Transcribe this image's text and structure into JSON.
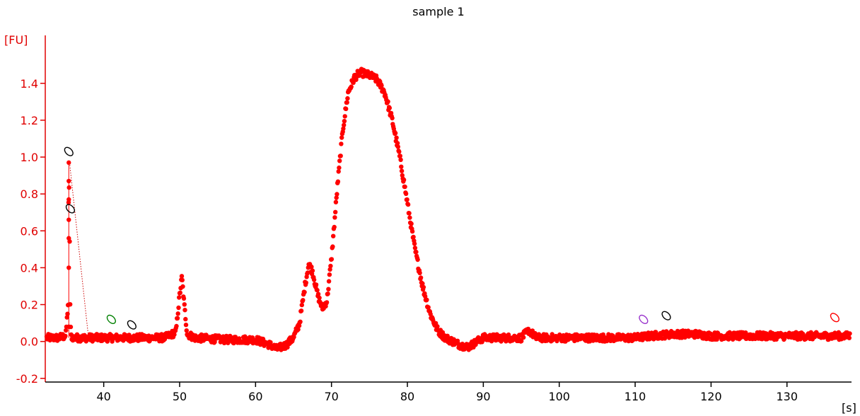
{
  "chart_data": {
    "type": "scatter",
    "title": "sample 1",
    "xlabel": "[s]",
    "ylabel": "[FU]",
    "xlim": [
      32.3,
      138.5
    ],
    "ylim": [
      -0.22,
      1.66
    ],
    "x_ticks": [
      40,
      50,
      60,
      70,
      80,
      90,
      100,
      110,
      120,
      130
    ],
    "x_tick_labels": [
      "40",
      "50",
      "60",
      "70",
      "80",
      "90",
      "100",
      "110",
      "120",
      "130"
    ],
    "y_ticks": [
      -0.2,
      0.0,
      0.2,
      0.4,
      0.6,
      0.8,
      1.0,
      1.2,
      1.4
    ],
    "y_tick_labels": [
      "-0.2",
      "0.0",
      "0.2",
      "0.4",
      "0.6",
      "0.8",
      "1.0",
      "1.2",
      "1.4"
    ],
    "grid": false,
    "colors": {
      "series": "#ff0000",
      "y_axis": "#e00000",
      "x_axis": "#000000",
      "title": "#000000"
    },
    "series": [
      {
        "style": "dots",
        "baseline_noise": 0.02,
        "x": [
          32.5,
          34.0,
          35.0,
          35.3,
          35.4,
          35.5,
          35.6,
          35.7,
          36.0,
          38.0,
          42.0,
          46.0,
          48.0,
          49.5,
          50.0,
          50.3,
          50.6,
          51.0,
          52.0,
          56.0,
          60.0,
          62.0,
          62.8,
          64.0,
          65.0,
          65.8,
          66.5,
          67.0,
          67.5,
          68.2,
          68.8,
          69.4,
          70.0,
          70.8,
          71.5,
          72.2,
          73.0,
          73.8,
          74.5,
          75.2,
          76.0,
          77.0,
          78.0,
          79.0,
          80.0,
          81.0,
          82.0,
          83.0,
          84.0,
          85.0,
          86.0,
          87.0,
          88.0,
          90.0,
          95.0,
          96.0,
          97.0,
          100.0,
          105.0,
          110.0,
          112.0,
          115.0,
          118.0,
          120.0,
          125.0,
          130.0,
          135.0,
          138.3
        ],
        "y": [
          0.02,
          0.02,
          0.03,
          0.2,
          0.97,
          0.6,
          0.1,
          0.03,
          0.02,
          0.02,
          0.02,
          0.02,
          0.02,
          0.05,
          0.25,
          0.35,
          0.2,
          0.04,
          0.02,
          0.01,
          0.01,
          -0.02,
          -0.04,
          -0.02,
          0.02,
          0.1,
          0.3,
          0.42,
          0.38,
          0.25,
          0.18,
          0.22,
          0.45,
          0.85,
          1.15,
          1.35,
          1.43,
          1.46,
          1.45,
          1.44,
          1.42,
          1.35,
          1.2,
          1.0,
          0.75,
          0.5,
          0.3,
          0.15,
          0.06,
          0.02,
          0.0,
          -0.02,
          -0.03,
          0.02,
          0.02,
          0.06,
          0.02,
          0.02,
          0.02,
          0.02,
          0.03,
          0.04,
          0.04,
          0.03,
          0.03,
          0.03,
          0.03,
          0.03
        ]
      }
    ],
    "markers": [
      {
        "x": 35.4,
        "y": 1.03,
        "color": "#000000"
      },
      {
        "x": 35.6,
        "y": 0.72,
        "color": "#000000"
      },
      {
        "x": 41.0,
        "y": 0.12,
        "color": "#008000"
      },
      {
        "x": 43.7,
        "y": 0.09,
        "color": "#000000"
      },
      {
        "x": 111.1,
        "y": 0.12,
        "color": "#9933cc"
      },
      {
        "x": 114.1,
        "y": 0.14,
        "color": "#000000"
      },
      {
        "x": 136.3,
        "y": 0.13,
        "color": "#ff0000"
      }
    ],
    "dotted_line": {
      "x": [
        35.5,
        38.0
      ],
      "y": [
        0.97,
        0.02
      ],
      "color": "#cc0000"
    }
  }
}
